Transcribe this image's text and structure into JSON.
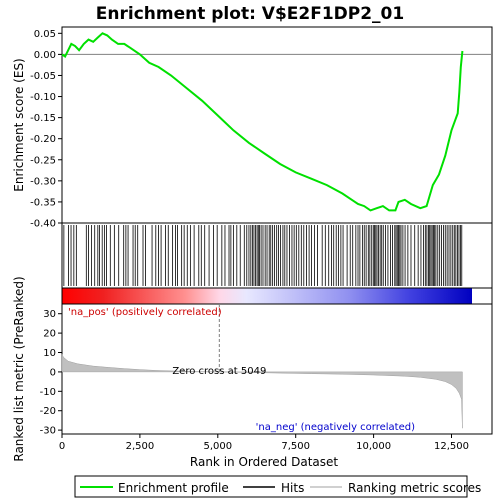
{
  "chart_data": {
    "type": "line",
    "title": "Enrichment plot: V$E2F1DP2_01",
    "xlabel": "Rank in Ordered Dataset",
    "top_ylabel": "Enrichment score (ES)",
    "bottom_ylabel": "Ranked list metric (PreRanked)",
    "x_ticks": [
      "0",
      "2,500",
      "5,000",
      "7,500",
      "10,000",
      "12,500"
    ],
    "x_tick_values": [
      0,
      2500,
      5000,
      7500,
      10000,
      12500
    ],
    "xlim": [
      0,
      13800
    ],
    "top_ylim": [
      -0.4,
      0.065
    ],
    "top_y_ticks": [
      "0.05",
      "0.00",
      "-0.05",
      "-0.10",
      "-0.15",
      "-0.20",
      "-0.25",
      "-0.30",
      "-0.35",
      "-0.40"
    ],
    "top_y_tick_values": [
      0.05,
      0.0,
      -0.05,
      -0.1,
      -0.15,
      -0.2,
      -0.25,
      -0.3,
      -0.35,
      -0.4
    ],
    "bottom_ylim": [
      -32,
      35
    ],
    "bottom_y_ticks": [
      "30",
      "20",
      "10",
      "0",
      "-10",
      "-20",
      "-30"
    ],
    "bottom_y_tick_values": [
      30,
      20,
      10,
      0,
      -10,
      -20,
      -30
    ],
    "colors": {
      "es_line": "#00e000",
      "hits": "#000000",
      "metric_fill": "#c0c0c0",
      "zero_line": "#808080",
      "pos_label": "#cc0000",
      "neg_label": "#0000cc"
    },
    "series": [
      {
        "name": "Enrichment profile",
        "x": [
          0,
          100,
          200,
          300,
          420,
          550,
          700,
          850,
          1000,
          1150,
          1300,
          1450,
          1600,
          1800,
          2000,
          2200,
          2500,
          2800,
          3100,
          3500,
          4000,
          4500,
          5000,
          5500,
          6000,
          6500,
          7000,
          7500,
          8000,
          8500,
          9000,
          9300,
          9500,
          9700,
          9900,
          10100,
          10300,
          10500,
          10700,
          10800,
          11000,
          11200,
          11500,
          11700,
          11900,
          12100,
          12300,
          12400,
          12500,
          12600,
          12700,
          12750,
          12800,
          12850
        ],
        "values": [
          0.0,
          -0.005,
          0.01,
          0.025,
          0.02,
          0.01,
          0.025,
          0.035,
          0.03,
          0.04,
          0.05,
          0.045,
          0.035,
          0.025,
          0.025,
          0.015,
          0.0,
          -0.02,
          -0.03,
          -0.05,
          -0.08,
          -0.11,
          -0.145,
          -0.18,
          -0.21,
          -0.235,
          -0.26,
          -0.28,
          -0.295,
          -0.31,
          -0.33,
          -0.345,
          -0.355,
          -0.36,
          -0.37,
          -0.365,
          -0.36,
          -0.37,
          -0.37,
          -0.35,
          -0.345,
          -0.355,
          -0.365,
          -0.36,
          -0.31,
          -0.285,
          -0.24,
          -0.21,
          -0.18,
          -0.16,
          -0.14,
          -0.09,
          -0.03,
          0.008
        ]
      }
    ],
    "hit_positions": [
      60,
      210,
      290,
      380,
      460,
      780,
      850,
      950,
      1050,
      1150,
      1200,
      1290,
      1360,
      1430,
      1550,
      1680,
      1820,
      1980,
      2050,
      2120,
      2280,
      2350,
      2430,
      2600,
      2680,
      2890,
      3010,
      3100,
      3180,
      3320,
      3410,
      3550,
      3640,
      3710,
      3840,
      3920,
      4020,
      4120,
      4240,
      4390,
      4470,
      4580,
      4720,
      4860,
      4980,
      5130,
      5230,
      5360,
      5420,
      5500,
      5610,
      5720,
      5850,
      5930,
      6000,
      6060,
      6110,
      6160,
      6210,
      6260,
      6300,
      6340,
      6390,
      6450,
      6520,
      6580,
      6650,
      6700,
      6760,
      6820,
      6890,
      6950,
      7010,
      7090,
      7150,
      7220,
      7300,
      7380,
      7450,
      7520,
      7600,
      7680,
      7760,
      7850,
      7930,
      8010,
      8100,
      8200,
      8350,
      8450,
      8560,
      8650,
      8720,
      8800,
      8870,
      8950,
      9020,
      9150,
      9250,
      9330,
      9430,
      9500,
      9560,
      9640,
      9700,
      9760,
      9830,
      9880,
      9940,
      9990,
      10030,
      10070,
      10110,
      10160,
      10210,
      10260,
      10310,
      10380,
      10460,
      10540,
      10610,
      10680,
      10720,
      10760,
      10800,
      10840,
      10880,
      10940,
      11010,
      11100,
      11200,
      11320,
      11430,
      11520,
      11600,
      11660,
      11710,
      11760,
      11800,
      11840,
      11880,
      11920,
      11960,
      12000,
      12060,
      12120,
      12180,
      12240,
      12300,
      12360,
      12420,
      12480,
      12540,
      12590,
      12640,
      12690,
      12740,
      12790,
      12830
    ],
    "metric_profile": {
      "x": [
        0,
        50,
        200,
        500,
        1000,
        1500,
        2000,
        2500,
        3000,
        3500,
        4000,
        4500,
        5049,
        6000,
        7000,
        8000,
        9000,
        10000,
        11000,
        11500,
        12000,
        12300,
        12500,
        12650,
        12750,
        12820,
        12850
      ],
      "values": [
        9,
        7.5,
        5.5,
        4.2,
        3.0,
        2.3,
        1.7,
        1.2,
        0.8,
        0.5,
        0.3,
        0.15,
        0,
        -0.3,
        -0.6,
        -0.9,
        -1.2,
        -1.6,
        -2.2,
        -2.8,
        -3.8,
        -5,
        -6.5,
        -8.5,
        -11,
        -14,
        -29
      ]
    },
    "pos_label": "'na_pos' (positively correlated)",
    "neg_label": "'na_neg' (negatively correlated)",
    "zero_cross_label": "Zero cross at 5049",
    "zero_cross_x": 5049,
    "dataset_size": 12850,
    "legend": [
      {
        "name": "Enrichment profile",
        "color": "#00e000"
      },
      {
        "name": "Hits",
        "color": "#000000"
      },
      {
        "name": "Ranking metric scores",
        "color": "#c0c0c0"
      }
    ],
    "legend_position": "bottom"
  }
}
